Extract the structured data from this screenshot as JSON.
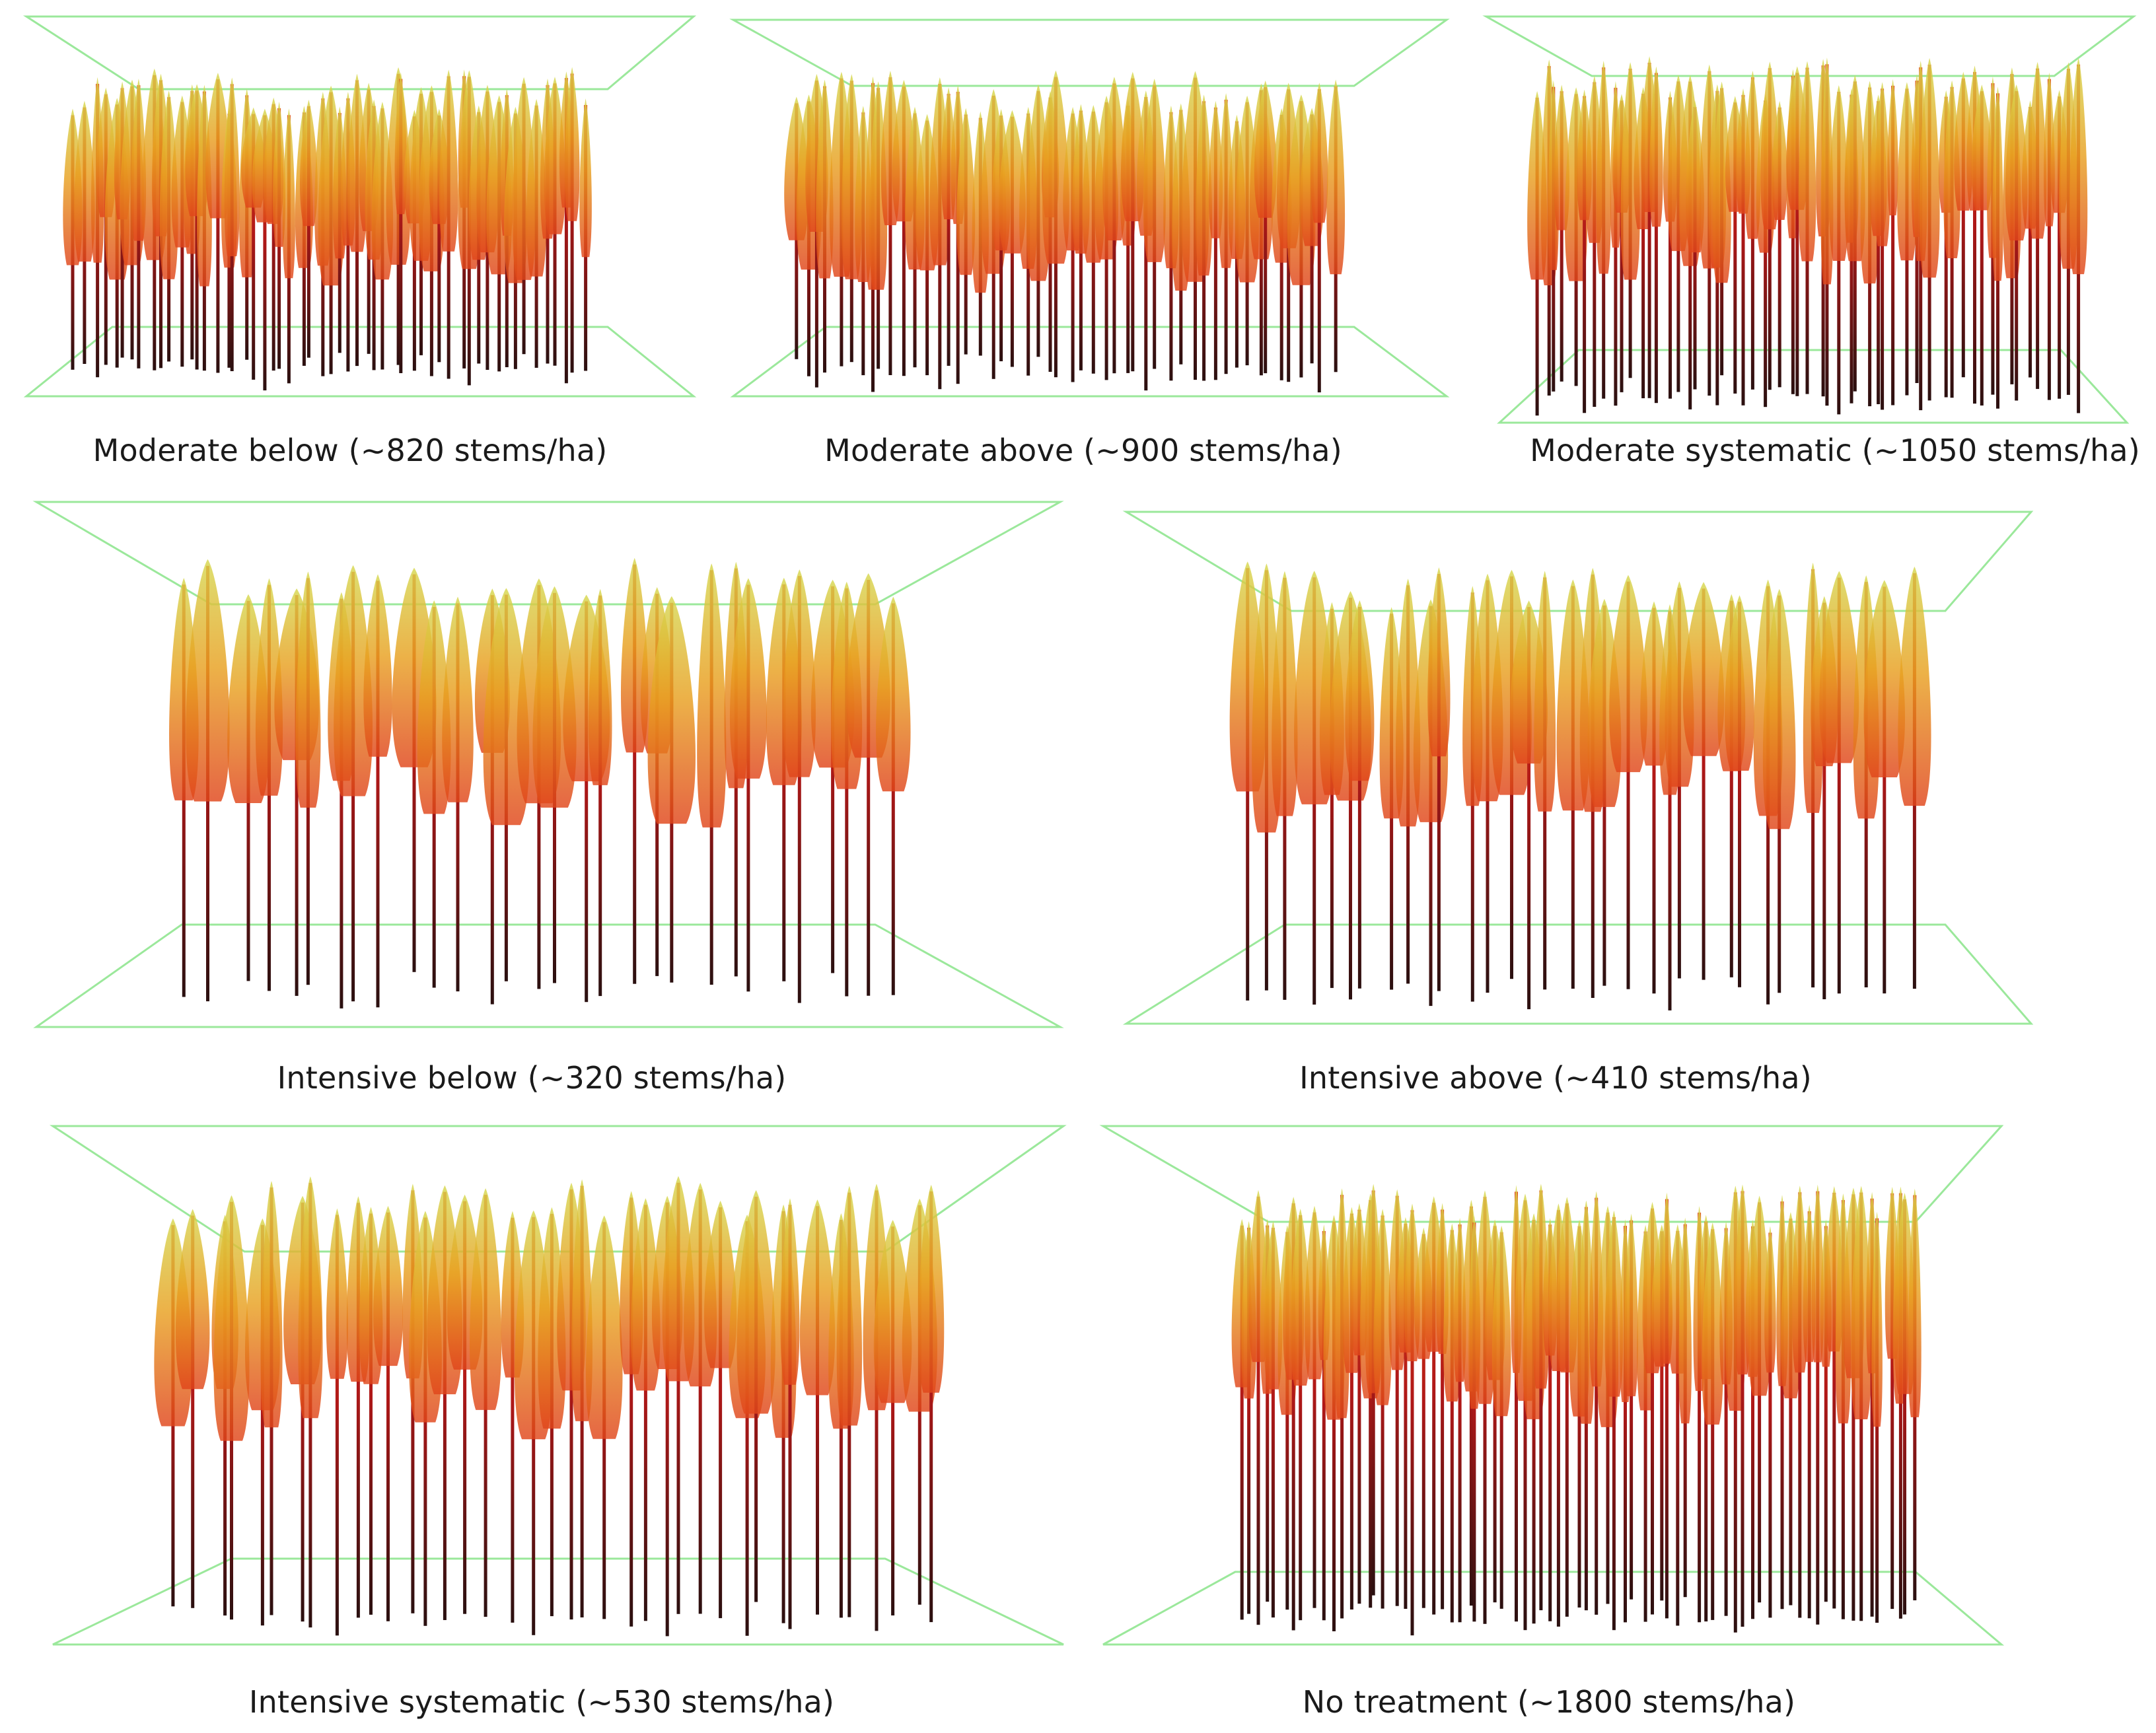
{
  "figure": {
    "panels": [
      {
        "id": "p1",
        "caption": "Moderate below (~820 stems/ha)"
      },
      {
        "id": "p2",
        "caption": "Moderate above (~900 stems/ha)"
      },
      {
        "id": "p3",
        "caption": "Moderate systematic (~1050 stems/ha)"
      },
      {
        "id": "p4",
        "caption": "Intensive below (~320 stems/ha)"
      },
      {
        "id": "p5",
        "caption": "Intensive above (~410 stems/ha)"
      },
      {
        "id": "p6",
        "caption": "Intensive systematic (~530 stems/ha)"
      },
      {
        "id": "p7",
        "caption": "No treatment (~1800 stems/ha)"
      }
    ],
    "colors": {
      "box": "#9be89b",
      "trunk_dark": "#2a1010",
      "trunk_mid": "#b01818",
      "crown_low": "#e0451a",
      "crown_mid": "#e8a020",
      "crown_top": "#d6d850"
    }
  }
}
